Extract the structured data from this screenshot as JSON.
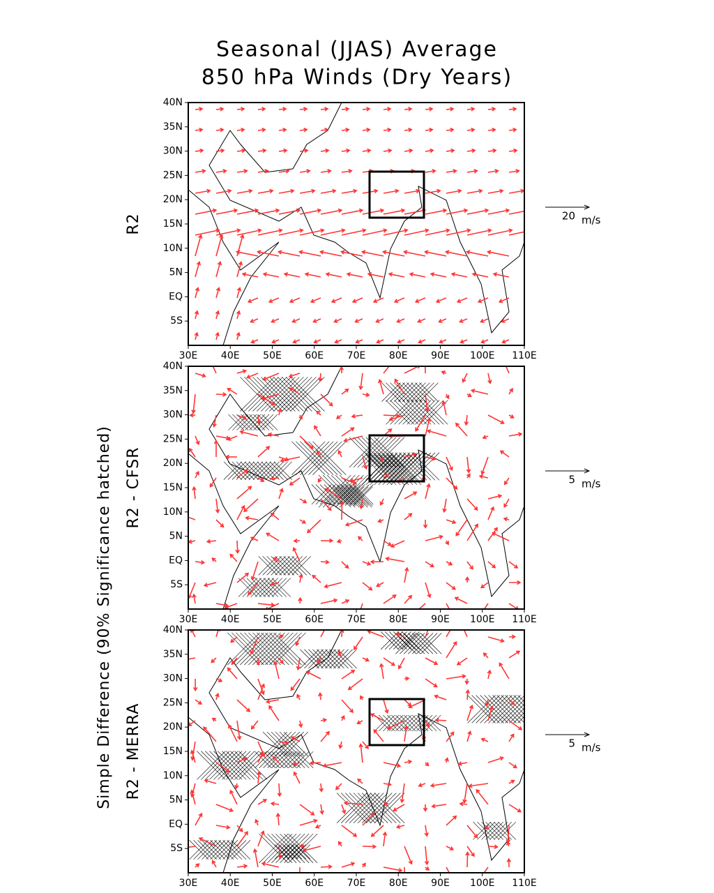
{
  "title": [
    "Seasonal (JJAS) Average",
    "850 hPa Winds (Dry Years)"
  ],
  "side_label": "Simple Difference (90% Significance hatched)",
  "lat_labels": [
    "40N",
    "35N",
    "30N",
    "25N",
    "20N",
    "15N",
    "10N",
    "5N",
    "EQ",
    "5S"
  ],
  "lon_labels": [
    "30E",
    "40E",
    "50E",
    "60E",
    "70E",
    "80E",
    "90E",
    "100E",
    "110E"
  ],
  "panels": [
    {
      "label": "R2",
      "ref_speed": "20",
      "ref_unit": "m/s"
    },
    {
      "label": "R2 - CFSR",
      "ref_speed": "5",
      "ref_unit": "m/s"
    },
    {
      "label": "R2 - MERRA",
      "ref_speed": "5",
      "ref_unit": "m/s"
    }
  ]
}
